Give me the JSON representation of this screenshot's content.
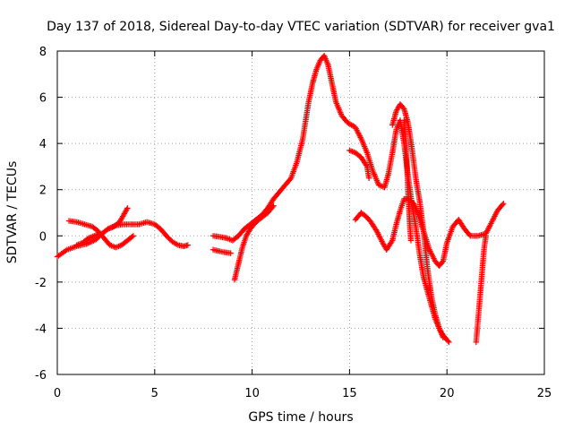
{
  "chart_data": {
    "type": "scatter",
    "title": "Day 137 of 2018, Sidereal Day-to-day VTEC variation (SDTVAR) for receiver gva1",
    "xlabel": "GPS time / hours",
    "ylabel": "SDTVAR / TECUs",
    "xlim": [
      0,
      25
    ],
    "ylim": [
      -6,
      8
    ],
    "xticks": [
      0,
      5,
      10,
      15,
      20,
      25
    ],
    "yticks": [
      -6,
      -4,
      -2,
      0,
      2,
      4,
      6,
      8
    ],
    "grid": true,
    "marker": "plus",
    "color": "#ff0000",
    "series": [
      {
        "segments": [
          [
            [
              0.0,
              -0.9
            ],
            [
              0.5,
              -0.6
            ],
            [
              1.0,
              -0.45
            ],
            [
              1.5,
              -0.35
            ],
            [
              2.0,
              -0.15
            ],
            [
              2.3,
              0.1
            ],
            [
              2.6,
              0.3
            ],
            [
              3.0,
              0.45
            ],
            [
              3.4,
              0.5
            ],
            [
              3.8,
              0.5
            ],
            [
              4.2,
              0.5
            ],
            [
              4.6,
              0.6
            ],
            [
              5.0,
              0.5
            ],
            [
              5.3,
              0.3
            ],
            [
              5.6,
              0.0
            ],
            [
              5.9,
              -0.25
            ],
            [
              6.2,
              -0.4
            ],
            [
              6.5,
              -0.45
            ],
            [
              6.7,
              -0.4
            ]
          ],
          [
            [
              0.6,
              0.65
            ],
            [
              1.0,
              0.6
            ],
            [
              1.4,
              0.5
            ],
            [
              1.8,
              0.4
            ],
            [
              2.1,
              0.2
            ],
            [
              2.4,
              -0.1
            ],
            [
              2.7,
              -0.4
            ],
            [
              3.0,
              -0.5
            ],
            [
              3.3,
              -0.4
            ],
            [
              3.6,
              -0.2
            ],
            [
              3.9,
              0.0
            ]
          ],
          [
            [
              2.6,
              0.3
            ],
            [
              2.9,
              0.4
            ],
            [
              3.2,
              0.6
            ],
            [
              3.4,
              0.9
            ],
            [
              3.6,
              1.2
            ]
          ],
          [
            [
              1.0,
              -0.4
            ],
            [
              1.3,
              -0.3
            ],
            [
              1.6,
              -0.1
            ],
            [
              1.9,
              0.0
            ],
            [
              2.2,
              0.1
            ]
          ],
          [
            [
              8.0,
              0.0
            ],
            [
              8.4,
              -0.05
            ],
            [
              8.7,
              -0.1
            ],
            [
              9.0,
              -0.2
            ],
            [
              9.3,
              0.0
            ],
            [
              9.6,
              0.3
            ],
            [
              9.9,
              0.5
            ],
            [
              10.2,
              0.7
            ],
            [
              10.5,
              0.9
            ],
            [
              10.8,
              1.2
            ],
            [
              11.1,
              1.6
            ],
            [
              11.4,
              1.9
            ],
            [
              11.7,
              2.2
            ],
            [
              12.0,
              2.5
            ],
            [
              12.3,
              3.2
            ],
            [
              12.6,
              4.2
            ],
            [
              12.9,
              5.8
            ],
            [
              13.1,
              6.6
            ],
            [
              13.3,
              7.2
            ],
            [
              13.5,
              7.6
            ],
            [
              13.7,
              7.8
            ],
            [
              13.9,
              7.4
            ],
            [
              14.1,
              6.6
            ],
            [
              14.3,
              5.8
            ],
            [
              14.6,
              5.2
            ],
            [
              14.9,
              4.9
            ],
            [
              15.3,
              4.7
            ],
            [
              15.6,
              4.2
            ],
            [
              15.9,
              3.6
            ],
            [
              16.2,
              2.8
            ],
            [
              16.5,
              2.2
            ],
            [
              16.8,
              2.1
            ],
            [
              17.0,
              2.7
            ],
            [
              17.2,
              3.6
            ],
            [
              17.4,
              4.6
            ],
            [
              17.6,
              5.0
            ],
            [
              17.8,
              4.0
            ],
            [
              18.0,
              2.6
            ],
            [
              18.2,
              1.4
            ],
            [
              18.4,
              0.4
            ],
            [
              18.6,
              -0.8
            ],
            [
              18.8,
              -1.8
            ],
            [
              19.0,
              -2.4
            ],
            [
              19.2,
              -3.0
            ],
            [
              19.4,
              -3.6
            ],
            [
              19.6,
              -4.0
            ],
            [
              19.8,
              -4.3
            ],
            [
              20.1,
              -4.6
            ]
          ],
          [
            [
              8.0,
              -0.6
            ],
            [
              8.5,
              -0.7
            ],
            [
              8.9,
              -0.75
            ]
          ],
          [
            [
              9.1,
              -1.9
            ],
            [
              9.3,
              -1.2
            ],
            [
              9.5,
              -0.5
            ],
            [
              9.7,
              0.0
            ],
            [
              9.9,
              0.3
            ],
            [
              10.2,
              0.6
            ],
            [
              10.5,
              0.8
            ],
            [
              10.8,
              1.0
            ],
            [
              11.1,
              1.3
            ]
          ],
          [
            [
              15.0,
              3.7
            ],
            [
              15.3,
              3.6
            ],
            [
              15.6,
              3.4
            ],
            [
              15.9,
              3.0
            ],
            [
              16.0,
              2.5
            ]
          ],
          [
            [
              15.3,
              0.7
            ],
            [
              15.6,
              1.0
            ],
            [
              15.9,
              0.8
            ],
            [
              16.1,
              0.6
            ],
            [
              16.4,
              0.2
            ],
            [
              16.7,
              -0.3
            ],
            [
              16.9,
              -0.6
            ],
            [
              17.2,
              -0.2
            ],
            [
              17.4,
              0.5
            ],
            [
              17.6,
              1.1
            ],
            [
              17.8,
              1.6
            ],
            [
              18.0,
              1.6
            ],
            [
              18.3,
              1.4
            ],
            [
              18.5,
              1.0
            ],
            [
              18.8,
              0.2
            ],
            [
              19.1,
              -0.6
            ],
            [
              19.4,
              -1.1
            ],
            [
              19.6,
              -1.3
            ],
            [
              19.8,
              -1.1
            ],
            [
              20.0,
              -0.3
            ],
            [
              20.3,
              0.4
            ],
            [
              20.6,
              0.7
            ],
            [
              20.9,
              0.3
            ],
            [
              21.2,
              0.0
            ],
            [
              21.6,
              0.0
            ],
            [
              22.0,
              0.1
            ],
            [
              22.3,
              0.6
            ],
            [
              22.6,
              1.1
            ],
            [
              22.9,
              1.4
            ]
          ],
          [
            [
              17.2,
              4.8
            ],
            [
              17.4,
              5.4
            ],
            [
              17.6,
              5.7
            ],
            [
              17.8,
              5.5
            ],
            [
              18.0,
              4.9
            ],
            [
              18.2,
              3.8
            ],
            [
              18.4,
              2.5
            ],
            [
              18.6,
              1.5
            ],
            [
              18.8,
              0.2
            ],
            [
              19.0,
              -1.4
            ],
            [
              19.2,
              -2.6
            ],
            [
              19.4,
              -3.4
            ],
            [
              19.6,
              -4.0
            ],
            [
              19.8,
              -4.4
            ]
          ],
          [
            [
              17.8,
              5.0
            ],
            [
              17.9,
              4.0
            ],
            [
              17.95,
              3.0
            ],
            [
              18.0,
              2.0
            ],
            [
              18.05,
              1.2
            ],
            [
              18.1,
              0.4
            ],
            [
              18.15,
              -0.2
            ]
          ],
          [
            [
              21.5,
              -4.6
            ],
            [
              21.6,
              -3.6
            ],
            [
              21.7,
              -2.6
            ],
            [
              21.8,
              -1.6
            ],
            [
              21.9,
              -0.6
            ],
            [
              22.0,
              0.0
            ]
          ]
        ]
      }
    ]
  }
}
